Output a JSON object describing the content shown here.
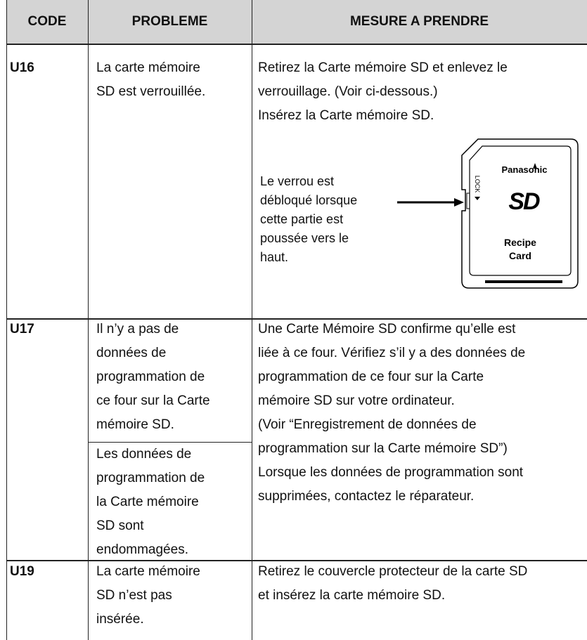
{
  "table": {
    "header": [
      "CODE",
      "PROBLEME",
      "MESURE A PRENDRE"
    ],
    "rows": [
      {
        "code": "U16",
        "problems": [
          [
            "La carte mémoire",
            "SD est verrouillée."
          ]
        ],
        "measure": [
          "Retirez la Carte mémoire SD et enlevez le",
          "verrouillage. (Voir ci-dessous.)",
          "Insérez la Carte mémoire SD."
        ]
      },
      {
        "code": "U17",
        "problems": [
          [
            "Il n’y a pas de",
            "données de",
            "programmation de",
            "ce four sur la Carte",
            "mémoire SD."
          ],
          [
            "Les données de",
            "programmation de",
            "la Carte mémoire",
            "SD sont",
            "endommagées."
          ]
        ],
        "measure": [
          "Une Carte Mémoire SD confirme qu’elle est",
          "liée à ce four. Vérifiez s’il y a des données de",
          "programmation de ce four sur la Carte",
          "mémoire SD sur votre ordinateur.",
          "(Voir “Enregistrement de données de",
          "programmation sur la Carte mémoire SD”)",
          "Lorsque les données de programmation sont",
          "supprimées, contactez le réparateur."
        ]
      },
      {
        "code": "U19",
        "problems": [
          [
            "La carte mémoire",
            "SD n’est pas",
            "insérée."
          ]
        ],
        "measure": [
          "Retirez le couvercle protecteur de la carte SD",
          "et insérez la carte mémoire SD."
        ]
      }
    ]
  },
  "figure": {
    "note": [
      "Le verrou est",
      "débloqué lorsque",
      "cette partie est",
      "poussée vers le",
      "haut."
    ],
    "card": {
      "brand": "Panasonic",
      "logo": "SD",
      "lock": "LOCK",
      "label": [
        "Recipe",
        "Card"
      ]
    }
  }
}
